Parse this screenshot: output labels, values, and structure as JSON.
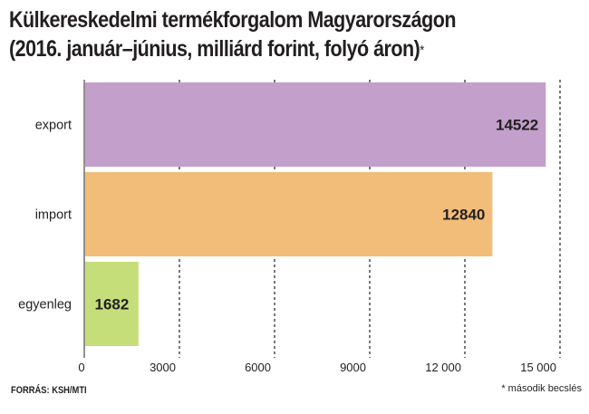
{
  "chart_data": {
    "type": "bar",
    "orientation": "horizontal",
    "title_line1": "Külkereskedelmi termékforgalom Magyarországon",
    "title_line2": "(2016. január–június, milliárd forint, folyó áron)",
    "title_mark": "*",
    "categories": [
      "export",
      "import",
      "egyenleg"
    ],
    "values": [
      14522,
      12840,
      1682
    ],
    "value_labels": [
      "14522",
      "12840",
      "1682"
    ],
    "bar_colors": [
      "#c39fcb",
      "#f1bd78",
      "#c5de7a"
    ],
    "xlim": [
      0,
      15000
    ],
    "x_ticks": [
      0,
      3000,
      6000,
      9000,
      12000,
      15000
    ],
    "x_tick_labels": [
      "0",
      "3000",
      "6000",
      "9000",
      "12 000",
      "15 000"
    ],
    "grid": "vertical-dashed",
    "source": "FORRÁS: KSH/MTI",
    "footnote": "* második becslés"
  }
}
